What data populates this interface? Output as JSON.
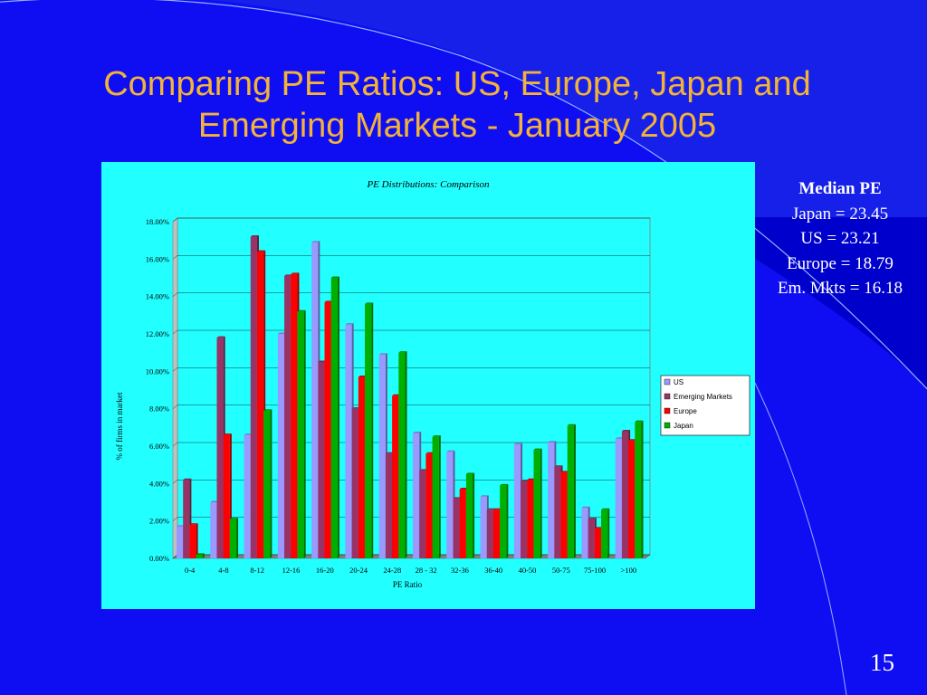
{
  "slide": {
    "title_line1": "Comparing PE Ratios: US, Europe, Japan and",
    "title_line2": "Emerging Markets - January 2005",
    "page_number": "15",
    "colors": {
      "background": "#0f0ef2",
      "title": "#f3b23a",
      "chart_panel": "#22ffff"
    }
  },
  "median_pe": {
    "heading": "Median PE",
    "lines": [
      "Japan = 23.45",
      "US = 23.21",
      "Europe = 18.79",
      "Em. Mkts = 16.18"
    ]
  },
  "chart_data": {
    "type": "bar",
    "title": "PE Distributions: Comparison",
    "xlabel": "PE Ratio",
    "ylabel": "% of firms in market",
    "ylim": [
      0,
      18
    ],
    "yticks": [
      "0.00%",
      "2.00%",
      "4.00%",
      "6.00%",
      "8.00%",
      "10.00%",
      "12.00%",
      "14.00%",
      "16.00%",
      "18.00%"
    ],
    "grid": true,
    "legend_position": "right",
    "categories": [
      "0-4",
      "4-8",
      "8-12",
      "12-16",
      "16-20",
      "20-24",
      "24-28",
      "28 - 32",
      "32-36",
      "36-40",
      "40-50",
      "50-75",
      "75-100",
      ">100"
    ],
    "series": [
      {
        "name": "US",
        "color": "#9999ff",
        "values": [
          1.7,
          3.0,
          6.6,
          12.0,
          16.9,
          12.5,
          10.9,
          6.7,
          5.7,
          3.3,
          6.1,
          6.2,
          2.7,
          6.4
        ]
      },
      {
        "name": "Emerging Markets",
        "color": "#993366",
        "values": [
          4.2,
          11.8,
          17.2,
          15.1,
          10.5,
          8.0,
          5.6,
          4.7,
          3.2,
          2.6,
          4.1,
          4.9,
          2.1,
          6.8
        ]
      },
      {
        "name": "Europe",
        "color": "#ff0000",
        "values": [
          1.8,
          6.6,
          16.4,
          15.2,
          13.7,
          9.7,
          8.7,
          5.6,
          3.7,
          2.6,
          4.2,
          4.6,
          1.6,
          6.3
        ]
      },
      {
        "name": "Japan",
        "color": "#00b000",
        "values": [
          0.2,
          2.1,
          7.9,
          13.2,
          15.0,
          13.6,
          11.0,
          6.5,
          4.5,
          3.9,
          5.8,
          7.1,
          2.6,
          7.3
        ]
      }
    ]
  }
}
